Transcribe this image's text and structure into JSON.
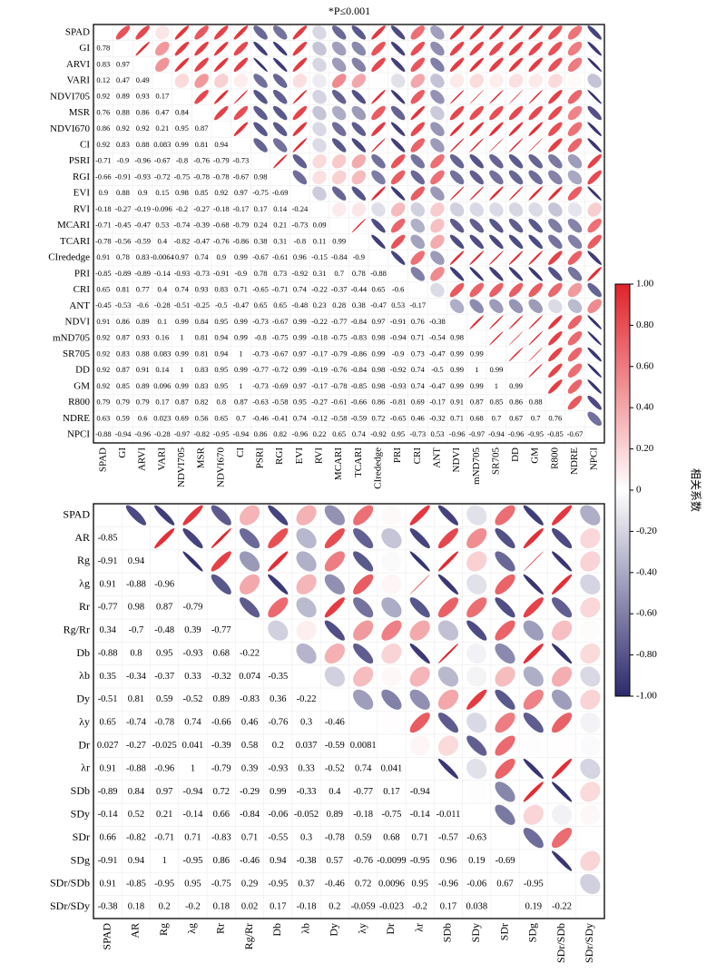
{
  "note": "*P≤0.001",
  "colorbar": {
    "title": "相关系数",
    "lim": [
      -1,
      1
    ],
    "colors": [
      "#2c2a6c",
      "#ffffff",
      "#e1232b"
    ],
    "ticks": [
      {
        "value": 1,
        "label": "1.00"
      },
      {
        "value": 0.8,
        "label": "0.80"
      },
      {
        "value": 0.6,
        "label": "0.60"
      },
      {
        "value": 0.4,
        "label": "0.40"
      },
      {
        "value": 0.2,
        "label": "0.20"
      },
      0,
      {
        "value": -0.2,
        "label": "-0.20"
      },
      {
        "value": -0.4,
        "label": "-0.40"
      },
      {
        "value": -0.6,
        "label": "-0.60"
      },
      {
        "value": -0.8,
        "label": "-0.80"
      },
      {
        "value": -1,
        "label": "-1.00"
      }
    ]
  },
  "chart_data": [
    {
      "type": "correlation",
      "labels": [
        "SPAD",
        "GI",
        "ARVI",
        "VARI",
        "NDVI705",
        "MSR",
        "NDVI670",
        "CI",
        "PSRI",
        "RGI",
        "EVI",
        "RVI",
        "MCARI",
        "TCARI",
        "CIrededge",
        "PRI",
        "CRI",
        "ANT",
        "NDVI",
        "mND705",
        "SR705",
        "DD",
        "GM",
        "R800",
        "NDRE",
        "NPCI"
      ],
      "values": [
        [],
        [
          0.78
        ],
        [
          0.83,
          0.97
        ],
        [
          0.12,
          0.47,
          0.49
        ],
        [
          0.92,
          0.89,
          0.93,
          0.17
        ],
        [
          0.76,
          0.88,
          0.86,
          0.47,
          0.84
        ],
        [
          0.86,
          0.92,
          0.92,
          0.21,
          0.95,
          0.87
        ],
        [
          0.92,
          0.83,
          0.88,
          0.083,
          0.99,
          0.81,
          0.94
        ],
        [
          -0.71,
          -0.9,
          -0.96,
          -0.67,
          -0.8,
          -0.76,
          -0.79,
          -0.73
        ],
        [
          -0.66,
          -0.91,
          -0.93,
          -0.72,
          -0.75,
          -0.78,
          -0.78,
          -0.67,
          0.98
        ],
        [
          0.9,
          0.88,
          0.9,
          0.15,
          0.98,
          0.85,
          0.92,
          0.97,
          -0.75,
          -0.69
        ],
        [
          -0.18,
          -0.27,
          -0.19,
          -0.096,
          -0.2,
          -0.27,
          -0.18,
          -0.17,
          0.17,
          0.14,
          -0.24
        ],
        [
          -0.71,
          -0.45,
          -0.47,
          0.53,
          -0.74,
          -0.39,
          -0.68,
          -0.79,
          0.24,
          0.21,
          -0.73,
          0.09
        ],
        [
          -0.78,
          -0.56,
          -0.59,
          0.4,
          -0.82,
          -0.47,
          -0.76,
          -0.86,
          0.38,
          0.31,
          -0.8,
          0.11,
          0.99
        ],
        [
          0.91,
          0.78,
          0.83,
          -0.0064,
          0.97,
          0.74,
          0.9,
          0.99,
          -0.67,
          -0.61,
          0.96,
          -0.15,
          -0.84,
          -0.9
        ],
        [
          -0.85,
          -0.89,
          -0.89,
          -0.14,
          -0.93,
          -0.73,
          -0.91,
          -0.9,
          0.78,
          0.73,
          -0.92,
          0.31,
          0.7,
          0.78,
          -0.88
        ],
        [
          0.65,
          0.81,
          0.77,
          0.4,
          0.74,
          0.93,
          0.83,
          0.71,
          -0.65,
          -0.71,
          0.74,
          -0.22,
          -0.37,
          -0.44,
          0.65,
          -0.6
        ],
        [
          -0.45,
          -0.53,
          -0.6,
          -0.28,
          -0.51,
          -0.25,
          -0.5,
          -0.47,
          0.65,
          0.65,
          -0.48,
          0.23,
          0.28,
          0.38,
          -0.47,
          0.53,
          -0.17
        ],
        [
          0.91,
          0.86,
          0.89,
          0.1,
          0.99,
          0.84,
          0.95,
          0.99,
          -0.73,
          -0.67,
          0.99,
          -0.22,
          -0.77,
          -0.84,
          0.97,
          -0.91,
          0.76,
          -0.38
        ],
        [
          0.92,
          0.87,
          0.93,
          0.16,
          1.0,
          0.81,
          0.94,
          0.99,
          -0.8,
          -0.75,
          0.99,
          -0.18,
          -0.75,
          -0.83,
          0.98,
          -0.94,
          0.71,
          -0.54,
          0.98
        ],
        [
          0.92,
          0.83,
          0.88,
          0.083,
          0.99,
          0.81,
          0.94,
          1.0,
          -0.73,
          -0.67,
          0.97,
          -0.17,
          -0.79,
          -0.86,
          0.99,
          -0.9,
          0.73,
          -0.47,
          0.99,
          0.99
        ],
        [
          0.92,
          0.87,
          0.91,
          0.14,
          1.0,
          0.83,
          0.95,
          0.99,
          -0.77,
          -0.72,
          0.99,
          -0.19,
          -0.76,
          -0.84,
          0.98,
          -0.92,
          0.74,
          -0.5,
          0.99,
          1.0,
          0.99
        ],
        [
          0.92,
          0.85,
          0.89,
          0.096,
          0.99,
          0.83,
          0.95,
          1.0,
          -0.73,
          -0.69,
          0.97,
          -0.17,
          -0.78,
          -0.85,
          0.98,
          -0.93,
          0.74,
          -0.47,
          0.99,
          0.99,
          1.0,
          0.99
        ],
        [
          0.79,
          0.79,
          0.79,
          0.17,
          0.87,
          0.82,
          0.8,
          0.87,
          -0.63,
          -0.58,
          0.95,
          -0.27,
          -0.61,
          -0.66,
          0.86,
          -0.81,
          0.69,
          -0.17,
          0.91,
          0.87,
          0.85,
          0.86,
          0.88
        ],
        [
          0.63,
          0.59,
          0.6,
          0.023,
          0.69,
          0.56,
          0.65,
          0.7,
          -0.46,
          -0.41,
          0.74,
          -0.12,
          -0.58,
          -0.59,
          0.72,
          -0.65,
          0.46,
          -0.32,
          0.71,
          0.68,
          0.7,
          0.67,
          0.7,
          0.76
        ],
        [
          -0.88,
          -0.94,
          -0.96,
          -0.28,
          -0.97,
          -0.82,
          -0.95,
          -0.94,
          0.86,
          0.82,
          -0.96,
          0.22,
          0.65,
          0.74,
          -0.92,
          0.95,
          -0.73,
          0.53,
          -0.96,
          -0.97,
          -0.94,
          -0.96,
          -0.95,
          -0.85,
          -0.67
        ]
      ]
    },
    {
      "type": "correlation",
      "labels": [
        "SPAD",
        "AR",
        "Rg",
        "λg",
        "Rr",
        "Rg/Rr",
        "Db",
        "λb",
        "Dy",
        "λy",
        "Dr",
        "λr",
        "SDb",
        "SDy",
        "SDr",
        "SDg",
        "SDr/SDb",
        "SDr/SDy"
      ],
      "values": [
        [],
        [
          -0.85
        ],
        [
          -0.91,
          0.94
        ],
        [
          0.91,
          -0.88,
          -0.96
        ],
        [
          -0.77,
          0.98,
          0.87,
          -0.79
        ],
        [
          0.34,
          -0.7,
          -0.48,
          0.39,
          -0.77
        ],
        [
          -0.88,
          0.8,
          0.95,
          -0.93,
          0.68,
          -0.22
        ],
        [
          0.35,
          -0.34,
          -0.37,
          0.33,
          -0.32,
          0.074,
          -0.35
        ],
        [
          -0.51,
          0.81,
          0.59,
          -0.52,
          0.89,
          -0.83,
          0.36,
          -0.22
        ],
        [
          0.65,
          -0.74,
          -0.78,
          0.74,
          -0.66,
          0.46,
          -0.76,
          0.3,
          -0.46
        ],
        [
          0.027,
          -0.27,
          -0.025,
          0.041,
          -0.39,
          0.58,
          0.2,
          0.037,
          -0.59,
          0.0081
        ],
        [
          0.91,
          -0.88,
          -0.96,
          1.0,
          -0.79,
          0.39,
          -0.93,
          0.33,
          -0.52,
          0.74,
          0.041
        ],
        [
          -0.89,
          0.84,
          0.97,
          -0.94,
          0.72,
          -0.29,
          0.99,
          -0.33,
          0.4,
          -0.77,
          0.17,
          -0.94
        ],
        [
          -0.14,
          0.52,
          0.21,
          -0.14,
          0.66,
          -0.84,
          -0.06,
          -0.052,
          0.89,
          -0.18,
          -0.75,
          -0.14,
          -0.011
        ],
        [
          0.66,
          -0.82,
          -0.71,
          0.71,
          -0.83,
          0.71,
          -0.55,
          0.3,
          -0.78,
          0.59,
          0.68,
          0.71,
          -0.57,
          -0.63
        ],
        [
          -0.91,
          0.94,
          1.0,
          -0.95,
          0.86,
          -0.46,
          0.94,
          -0.38,
          0.57,
          -0.76,
          -0.0099,
          -0.95,
          0.96,
          0.19,
          -0.69
        ],
        [
          0.91,
          -0.85,
          -0.95,
          0.95,
          -0.75,
          0.29,
          -0.95,
          0.37,
          -0.46,
          0.72,
          0.0096,
          0.95,
          -0.96,
          -0.06,
          0.67,
          -0.95
        ],
        [
          -0.38,
          0.18,
          0.2,
          -0.2,
          0.18,
          0.02,
          0.17,
          -0.18,
          0.2,
          -0.059,
          -0.023,
          -0.2,
          0.17,
          0.038,
          null,
          0.19,
          -0.22
        ]
      ]
    }
  ]
}
